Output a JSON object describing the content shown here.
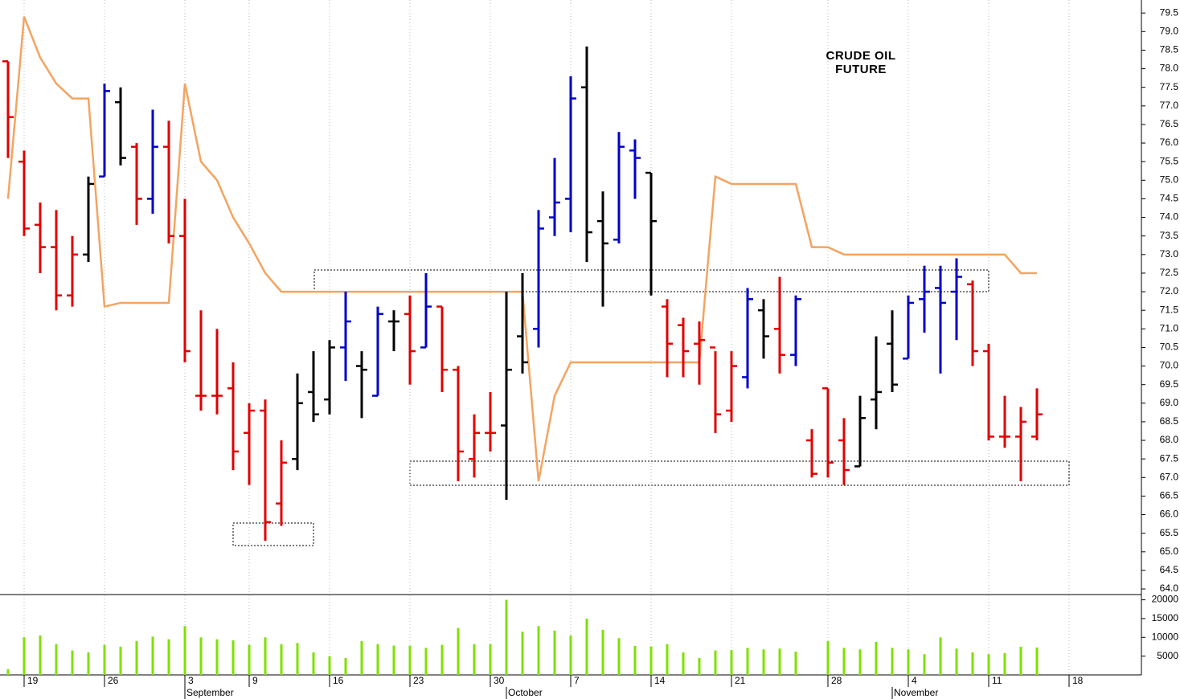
{
  "chart_data": [
    {
      "type": "ohlc",
      "title": "CRUDE OIL FUTURE",
      "x": [
        0,
        1,
        2,
        3,
        4,
        5,
        6,
        7,
        8,
        9,
        10,
        11,
        12,
        13,
        14,
        15,
        16,
        17,
        18,
        19,
        20,
        21,
        22,
        23,
        24,
        25,
        26,
        27,
        28,
        29,
        30,
        31,
        32,
        33,
        34,
        35,
        36,
        37,
        38,
        39,
        40,
        41,
        42,
        43,
        44,
        45,
        46,
        47,
        48,
        49,
        50,
        51,
        52,
        53,
        54,
        55,
        56,
        57,
        58,
        59,
        60,
        61,
        62,
        63,
        64
      ],
      "open": [
        78.2,
        75.5,
        73.8,
        73.2,
        71.9,
        73.0,
        75.1,
        77.1,
        75.9,
        74.5,
        75.9,
        73.5,
        69.2,
        69.2,
        69.4,
        68.2,
        68.8,
        66.3,
        67.5,
        69.3,
        69.1,
        70.5,
        70.0,
        69.2,
        71.2,
        71.4,
        70.5,
        71.6,
        69.9,
        67.5,
        68.2,
        68.4,
        70.8,
        71.0,
        74.0,
        74.5,
        77.5,
        73.9,
        73.4,
        75.8,
        75.2,
        71.6,
        71.1,
        70.6,
        70.5,
        68.8,
        69.7,
        71.5,
        71.0,
        70.3,
        68.0,
        69.4,
        68.0,
        67.3,
        69.1,
        70.6,
        70.2,
        71.8,
        72.1,
        72.0,
        72.2,
        70.4,
        68.1,
        68.1,
        68.1
      ],
      "high": [
        78.2,
        75.8,
        74.4,
        74.2,
        73.5,
        75.1,
        77.6,
        77.5,
        76.0,
        76.9,
        76.6,
        74.5,
        71.5,
        71.0,
        70.1,
        69.0,
        69.1,
        68.0,
        69.8,
        70.4,
        70.7,
        72.0,
        70.4,
        71.6,
        71.5,
        71.9,
        72.5,
        71.6,
        70.0,
        68.7,
        69.3,
        72.0,
        72.5,
        74.2,
        75.6,
        77.8,
        78.6,
        74.7,
        76.3,
        76.1,
        75.2,
        71.8,
        71.3,
        71.2,
        70.4,
        70.4,
        72.1,
        71.8,
        72.4,
        71.9,
        68.3,
        69.4,
        68.6,
        69.2,
        70.8,
        71.5,
        71.9,
        72.7,
        72.7,
        72.9,
        72.3,
        70.6,
        69.2,
        68.9,
        69.4
      ],
      "low": [
        75.6,
        73.5,
        72.5,
        71.5,
        71.6,
        72.8,
        75.1,
        75.4,
        73.8,
        74.1,
        73.3,
        70.1,
        68.8,
        68.7,
        67.2,
        66.8,
        65.3,
        65.7,
        67.2,
        68.5,
        68.7,
        69.6,
        68.6,
        69.2,
        70.4,
        69.5,
        70.5,
        69.3,
        66.9,
        67.0,
        67.7,
        66.4,
        69.8,
        70.5,
        73.5,
        73.6,
        72.8,
        71.6,
        73.3,
        74.5,
        71.9,
        69.7,
        69.7,
        69.5,
        68.2,
        68.5,
        69.4,
        70.2,
        69.8,
        70.0,
        67.0,
        67.0,
        66.8,
        67.3,
        68.3,
        69.3,
        70.2,
        70.9,
        69.8,
        70.7,
        70.0,
        68.0,
        67.8,
        66.9,
        68.0
      ],
      "close": [
        76.7,
        73.7,
        73.2,
        71.9,
        73.0,
        74.9,
        77.4,
        75.6,
        74.5,
        75.9,
        73.5,
        70.4,
        69.2,
        69.2,
        67.7,
        68.8,
        65.8,
        67.4,
        69.0,
        68.7,
        70.5,
        71.2,
        69.9,
        71.4,
        71.2,
        70.4,
        71.6,
        69.9,
        67.7,
        68.2,
        68.2,
        69.9,
        70.1,
        73.7,
        74.4,
        77.2,
        73.6,
        73.3,
        75.9,
        75.6,
        73.9,
        70.6,
        70.4,
        70.7,
        68.7,
        70.0,
        71.8,
        70.8,
        70.3,
        71.8,
        67.1,
        67.4,
        67.2,
        68.6,
        69.3,
        69.5,
        71.7,
        72.0,
        71.7,
        72.4,
        70.4,
        68.1,
        68.1,
        68.5,
        68.7
      ],
      "colors": [
        "#e00000",
        "#e00000",
        "#e00000",
        "#e00000",
        "#e00000",
        "#000000",
        "#0000c8",
        "#000000",
        "#e00000",
        "#0000c8",
        "#e00000",
        "#e00000",
        "#e00000",
        "#e00000",
        "#e00000",
        "#e00000",
        "#e00000",
        "#e00000",
        "#000000",
        "#000000",
        "#000000",
        "#0000c8",
        "#000000",
        "#0000c8",
        "#000000",
        "#e00000",
        "#0000c8",
        "#e00000",
        "#e00000",
        "#e00000",
        "#e00000",
        "#000000",
        "#000000",
        "#0000c8",
        "#0000c8",
        "#0000c8",
        "#000000",
        "#000000",
        "#0000c8",
        "#0000c8",
        "#000000",
        "#e00000",
        "#e00000",
        "#e00000",
        "#e00000",
        "#e00000",
        "#0000c8",
        "#000000",
        "#e00000",
        "#0000c8",
        "#e00000",
        "#e00000",
        "#e00000",
        "#000000",
        "#000000",
        "#000000",
        "#0000c8",
        "#0000c8",
        "#0000c8",
        "#0000c8",
        "#e00000",
        "#e00000",
        "#e00000",
        "#e00000",
        "#e00000"
      ],
      "overlay": {
        "color": "#f4a460",
        "values": [
          74.5,
          79.4,
          78.3,
          77.6,
          77.2,
          77.2,
          71.6,
          71.7,
          71.7,
          71.7,
          71.7,
          77.6,
          75.5,
          75.0,
          74.0,
          73.3,
          72.5,
          72.0,
          72.0,
          72.0,
          72.0,
          72.0,
          72.0,
          72.0,
          72.0,
          72.0,
          72.0,
          72.0,
          72.0,
          72.0,
          72.0,
          72.0,
          72.0,
          66.9,
          69.2,
          70.1,
          70.1,
          70.1,
          70.1,
          70.1,
          70.1,
          70.1,
          70.1,
          70.1,
          75.1,
          74.9,
          74.9,
          74.9,
          74.9,
          74.9,
          73.2,
          73.2,
          73.0,
          73.0,
          73.0,
          73.0,
          73.0,
          73.0,
          73.0,
          73.0,
          73.0,
          73.0,
          73.0,
          72.5,
          72.5
        ]
      },
      "xlim": [
        -0.5,
        70.5
      ],
      "xticks": [
        {
          "value": 1,
          "label": "19"
        },
        {
          "value": 6,
          "label": "26"
        },
        {
          "value": 11,
          "label": "3"
        },
        {
          "value": 15,
          "label": "9"
        },
        {
          "value": 20,
          "label": "16"
        },
        {
          "value": 25,
          "label": "23"
        },
        {
          "value": 30,
          "label": "30"
        },
        {
          "value": 35,
          "label": "7"
        },
        {
          "value": 40,
          "label": "14"
        },
        {
          "value": 45,
          "label": "21"
        },
        {
          "value": 51,
          "label": "28"
        },
        {
          "value": 56,
          "label": "4"
        },
        {
          "value": 61,
          "label": "11"
        },
        {
          "value": 66,
          "label": "18"
        }
      ],
      "month_ticks": [
        {
          "value": 11,
          "label": "September"
        },
        {
          "value": 31,
          "label": "October"
        },
        {
          "value": 55,
          "label": "November"
        }
      ],
      "ylim": [
        63.85,
        79.85
      ],
      "yticks": [
        {
          "value": 64,
          "label": "64.0"
        },
        64.5,
        {
          "value": 65,
          "label": "65.0"
        },
        65.5,
        {
          "value": 66,
          "label": "66.0"
        },
        66.5,
        {
          "value": 67,
          "label": "67.0"
        },
        67.5,
        {
          "value": 68,
          "label": "68.0"
        },
        68.5,
        {
          "value": 69,
          "label": "69.0"
        },
        69.5,
        {
          "value": 70,
          "label": "70.0"
        },
        70.5,
        {
          "value": 71,
          "label": "71.0"
        },
        71.5,
        {
          "value": 72,
          "label": "72.0"
        },
        72.5,
        {
          "value": 73,
          "label": "73.0"
        },
        73.5,
        {
          "value": 74,
          "label": "74.0"
        },
        74.5,
        {
          "value": 75,
          "label": "75.0"
        },
        75.5,
        {
          "value": 76,
          "label": "76.0"
        },
        76.5,
        {
          "value": 77,
          "label": "77.0"
        },
        77.5,
        {
          "value": 78,
          "label": "78.0"
        },
        78.5,
        {
          "value": 79,
          "label": "79.0"
        },
        79.5
      ],
      "grid": true
    },
    {
      "type": "bar",
      "color": "#7fe000",
      "values": [
        1500,
        10000,
        10500,
        8200,
        6500,
        6000,
        8000,
        7500,
        9000,
        10200,
        9500,
        13000,
        10000,
        9500,
        9200,
        8000,
        10000,
        8200,
        8500,
        6000,
        5000,
        4500,
        9000,
        8200,
        7800,
        7800,
        7200,
        8000,
        12500,
        8200,
        8200,
        20000,
        11500,
        13000,
        11800,
        10500,
        15000,
        12000,
        9800,
        7700,
        7600,
        8200,
        6000,
        4500,
        6500,
        6600,
        7200,
        6800,
        7000,
        6200,
        null,
        9000,
        7200,
        6800,
        8800,
        7200,
        6800,
        5500,
        10000,
        7000,
        6000,
        5500,
        5800,
        7500,
        7300
      ],
      "ylim": [
        0,
        21400
      ],
      "yticks": [
        5000,
        10000,
        15000,
        20000
      ]
    }
  ]
}
